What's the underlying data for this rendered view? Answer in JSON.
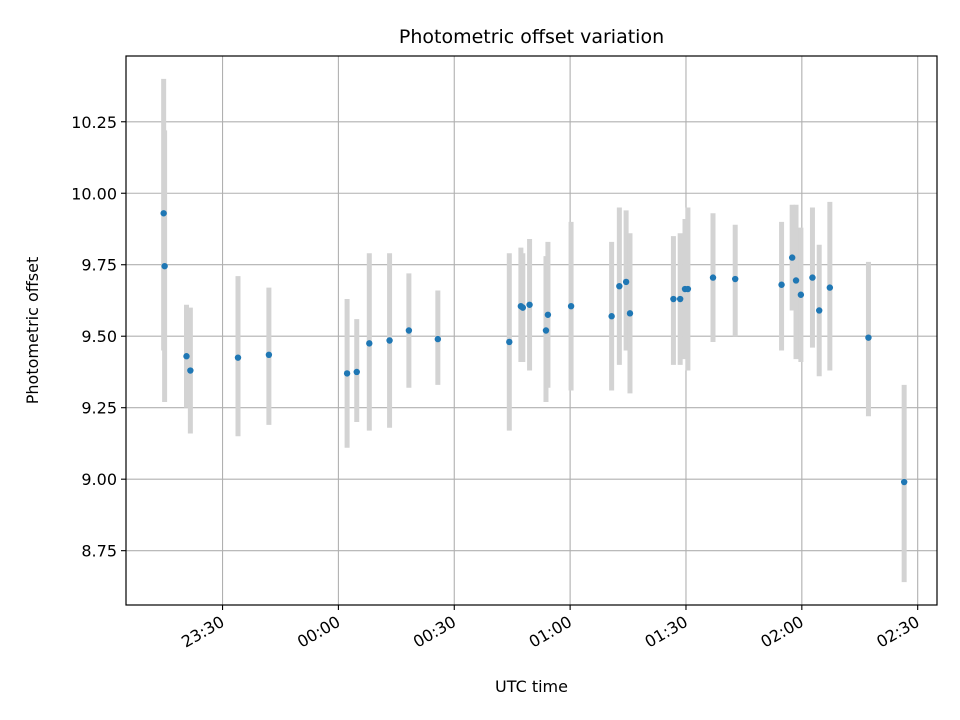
{
  "chart_data": {
    "type": "scatter",
    "title": "Photometric offset variation",
    "xlabel": "UTC time",
    "ylabel": "Photometric offset",
    "x_axis": "time",
    "xlim": [
      "23:05",
      "02:35"
    ],
    "ylim": [
      8.56,
      10.48
    ],
    "x_ticks": [
      "23:30",
      "00:00",
      "00:30",
      "01:00",
      "01:30",
      "02:00",
      "02:30"
    ],
    "y_ticks": [
      8.75,
      9.0,
      9.25,
      9.5,
      9.75,
      10.0,
      10.25
    ],
    "grid": true,
    "colors": {
      "point": "#1f77b4",
      "errorbar": "#d3d3d3",
      "grid": "#b0b0b0"
    },
    "series": [
      {
        "points": [
          {
            "t": "23:14:45",
            "y": 9.93,
            "ylo": 9.45,
            "yhi": 10.4
          },
          {
            "t": "23:15:00",
            "y": 9.745,
            "ylo": 9.27,
            "yhi": 10.22
          },
          {
            "t": "23:20:40",
            "y": 9.43,
            "ylo": 9.25,
            "yhi": 9.61
          },
          {
            "t": "23:21:40",
            "y": 9.38,
            "ylo": 9.16,
            "yhi": 9.6
          },
          {
            "t": "23:34:00",
            "y": 9.425,
            "ylo": 9.15,
            "yhi": 9.71
          },
          {
            "t": "23:42:00",
            "y": 9.435,
            "ylo": 9.19,
            "yhi": 9.67
          },
          {
            "t": "00:02:15",
            "y": 9.37,
            "ylo": 9.11,
            "yhi": 9.63
          },
          {
            "t": "00:04:45",
            "y": 9.375,
            "ylo": 9.2,
            "yhi": 9.56
          },
          {
            "t": "00:08:00",
            "y": 9.475,
            "ylo": 9.17,
            "yhi": 9.79
          },
          {
            "t": "00:13:15",
            "y": 9.485,
            "ylo": 9.18,
            "yhi": 9.79
          },
          {
            "t": "00:18:15",
            "y": 9.52,
            "ylo": 9.32,
            "yhi": 9.72
          },
          {
            "t": "00:25:45",
            "y": 9.49,
            "ylo": 9.33,
            "yhi": 9.66
          },
          {
            "t": "00:44:15",
            "y": 9.48,
            "ylo": 9.17,
            "yhi": 9.79
          },
          {
            "t": "00:47:15",
            "y": 9.605,
            "ylo": 9.41,
            "yhi": 9.81
          },
          {
            "t": "00:47:45",
            "y": 9.6,
            "ylo": 9.41,
            "yhi": 9.79
          },
          {
            "t": "00:49:30",
            "y": 9.61,
            "ylo": 9.38,
            "yhi": 9.84
          },
          {
            "t": "00:53:45",
            "y": 9.52,
            "ylo": 9.27,
            "yhi": 9.78
          },
          {
            "t": "00:54:15",
            "y": 9.575,
            "ylo": 9.32,
            "yhi": 9.83
          },
          {
            "t": "01:00:15",
            "y": 9.605,
            "ylo": 9.31,
            "yhi": 9.9
          },
          {
            "t": "01:10:45",
            "y": 9.57,
            "ylo": 9.31,
            "yhi": 9.83
          },
          {
            "t": "01:12:45",
            "y": 9.675,
            "ylo": 9.4,
            "yhi": 9.95
          },
          {
            "t": "01:14:30",
            "y": 9.69,
            "ylo": 9.45,
            "yhi": 9.94
          },
          {
            "t": "01:15:30",
            "y": 9.58,
            "ylo": 9.3,
            "yhi": 9.86
          },
          {
            "t": "01:26:45",
            "y": 9.63,
            "ylo": 9.4,
            "yhi": 9.85
          },
          {
            "t": "01:28:30",
            "y": 9.63,
            "ylo": 9.4,
            "yhi": 9.86
          },
          {
            "t": "01:29:45",
            "y": 9.665,
            "ylo": 9.42,
            "yhi": 9.91
          },
          {
            "t": "01:30:30",
            "y": 9.665,
            "ylo": 9.38,
            "yhi": 9.95
          },
          {
            "t": "01:37:00",
            "y": 9.705,
            "ylo": 9.48,
            "yhi": 9.93
          },
          {
            "t": "01:42:45",
            "y": 9.7,
            "ylo": 9.5,
            "yhi": 9.89
          },
          {
            "t": "01:54:45",
            "y": 9.68,
            "ylo": 9.45,
            "yhi": 9.9
          },
          {
            "t": "01:57:30",
            "y": 9.775,
            "ylo": 9.59,
            "yhi": 9.96
          },
          {
            "t": "01:58:30",
            "y": 9.695,
            "ylo": 9.42,
            "yhi": 9.96
          },
          {
            "t": "01:59:45",
            "y": 9.645,
            "ylo": 9.41,
            "yhi": 9.88
          },
          {
            "t": "02:02:45",
            "y": 9.705,
            "ylo": 9.46,
            "yhi": 9.95
          },
          {
            "t": "02:04:30",
            "y": 9.59,
            "ylo": 9.36,
            "yhi": 9.82
          },
          {
            "t": "02:07:15",
            "y": 9.67,
            "ylo": 9.38,
            "yhi": 9.97
          },
          {
            "t": "02:17:15",
            "y": 9.495,
            "ylo": 9.22,
            "yhi": 9.76
          },
          {
            "t": "02:26:30",
            "y": 8.99,
            "ylo": 8.64,
            "yhi": 9.33
          }
        ]
      }
    ]
  }
}
